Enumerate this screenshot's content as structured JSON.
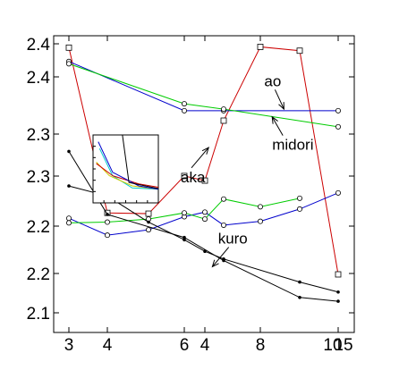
{
  "chart_data": {
    "type": "line",
    "y_tick_labels": [
      "2.4",
      "2.4",
      "2.3",
      "2.3",
      "2.2",
      "2.2",
      "2.1"
    ],
    "x_tick_labels": [
      "3",
      "4",
      "6",
      "4",
      "8",
      "10",
      "15"
    ],
    "ylim": [
      2.08,
      2.43
    ],
    "grid": false,
    "series": [
      {
        "key": "red",
        "color": "#cc0000",
        "marker": "square",
        "points": [
          [
            1,
            2.425
          ],
          [
            2,
            2.21
          ],
          [
            3,
            2.209
          ],
          [
            4,
            2.258
          ],
          [
            5,
            2.252
          ],
          [
            6,
            2.33
          ],
          [
            7,
            2.426
          ],
          [
            8,
            2.421
          ],
          [
            9,
            2.13
          ]
        ]
      },
      {
        "key": "blue",
        "color": "#0000cc",
        "marker": "circle",
        "points": [
          [
            1,
            2.407
          ],
          [
            4,
            2.343
          ],
          [
            6,
            2.343
          ],
          [
            9,
            2.343
          ]
        ]
      },
      {
        "key": "blue2",
        "color": "#0000cc",
        "marker": "circle",
        "points": [
          [
            1,
            2.203
          ],
          [
            2,
            2.181
          ],
          [
            3,
            2.188
          ],
          [
            4,
            2.205
          ],
          [
            5,
            2.211
          ],
          [
            6,
            2.194
          ],
          [
            7,
            2.199
          ],
          [
            8,
            2.215
          ],
          [
            9,
            2.236
          ]
        ]
      },
      {
        "key": "green",
        "color": "#00cc00",
        "marker": "circle",
        "points": [
          [
            1,
            2.404
          ],
          [
            4,
            2.352
          ],
          [
            6,
            2.345
          ],
          [
            9,
            2.322
          ]
        ]
      },
      {
        "key": "green2",
        "color": "#00cc00",
        "marker": "circle",
        "points": [
          [
            1,
            2.197
          ],
          [
            2,
            2.198
          ],
          [
            3,
            2.202
          ],
          [
            4,
            2.21
          ],
          [
            5,
            2.202
          ],
          [
            6,
            2.228
          ],
          [
            7,
            2.218
          ],
          [
            8,
            2.229
          ]
        ]
      },
      {
        "key": "black",
        "color": "#000000",
        "marker": "dot",
        "points": [
          [
            1,
            2.29
          ],
          [
            2,
            2.208
          ],
          [
            4,
            2.178
          ],
          [
            6,
            2.148
          ],
          [
            8,
            2.1
          ],
          [
            9,
            2.095
          ]
        ]
      },
      {
        "key": "black2",
        "color": "#000000",
        "marker": "dot",
        "points": [
          [
            1,
            2.245
          ],
          [
            2,
            2.232
          ],
          [
            3,
            2.198
          ],
          [
            4,
            2.175
          ],
          [
            5,
            2.16
          ],
          [
            6,
            2.15
          ],
          [
            8,
            2.12
          ],
          [
            9,
            2.107
          ]
        ]
      }
    ],
    "annotations": [
      {
        "text": "ao",
        "x": 7.1,
        "y": 2.375,
        "arrow_to": [
          7.6,
          2.345
        ]
      },
      {
        "text": "midori",
        "x": 7.3,
        "y": 2.292,
        "arrow_to": [
          7.3,
          2.335
        ]
      },
      {
        "text": "aka",
        "x": 3.9,
        "y": 2.25,
        "arrow_to": [
          5.2,
          2.295
        ]
      },
      {
        "text": "kuro",
        "x": 5.7,
        "y": 2.17,
        "arrow_to": [
          5.4,
          2.14
        ]
      }
    ],
    "inset": {
      "series": [
        {
          "color": "#00cccc",
          "points": [
            [
              0.1,
              0.2
            ],
            [
              0.3,
              0.6
            ],
            [
              0.6,
              0.78
            ],
            [
              1.0,
              0.8
            ]
          ]
        },
        {
          "color": "#cccc00",
          "points": [
            [
              0.05,
              0.4
            ],
            [
              0.25,
              0.6
            ],
            [
              0.6,
              0.75
            ],
            [
              1.0,
              0.8
            ]
          ]
        },
        {
          "color": "#cc0000",
          "points": [
            [
              0.05,
              0.42
            ],
            [
              0.3,
              0.6
            ],
            [
              0.7,
              0.72
            ],
            [
              1.0,
              0.77
            ]
          ]
        },
        {
          "color": "#0000cc",
          "points": [
            [
              0.08,
              0.1
            ],
            [
              0.3,
              0.55
            ],
            [
              0.7,
              0.75
            ],
            [
              1.0,
              0.8
            ]
          ]
        },
        {
          "color": "#000000",
          "points": [
            [
              0.45,
              0.0
            ],
            [
              0.55,
              0.7
            ],
            [
              1.0,
              0.79
            ]
          ]
        }
      ]
    }
  }
}
